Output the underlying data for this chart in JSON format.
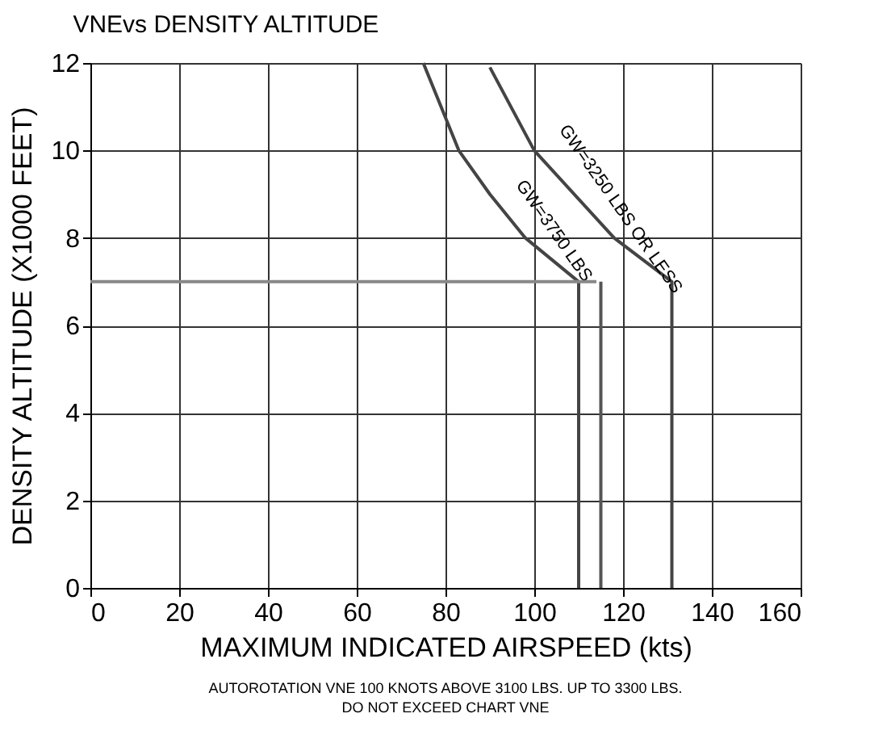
{
  "chart_data": {
    "type": "line",
    "title": "VNEvs DENSITY ALTITUDE",
    "xlabel": "MAXIMUM INDICATED AIRSPEED (kts)",
    "ylabel": "DENSITY ALTITUDE (X1000 FEET)",
    "xlim": [
      0,
      160
    ],
    "xticks": [
      0,
      20,
      40,
      60,
      80,
      100,
      120,
      140,
      160
    ],
    "ylim": [
      0,
      12
    ],
    "yticks": [
      0,
      2,
      4,
      6,
      8,
      10,
      12
    ],
    "grid": true,
    "line_style": "solid",
    "series": [
      {
        "name": "GW=3750 LBS",
        "color": "#444444",
        "x": [
          75,
          83,
          90,
          98,
          110,
          110
        ],
        "values": [
          12,
          10,
          9,
          8,
          7,
          0
        ]
      },
      {
        "name": "GW=3250 LBS OR LESS",
        "color": "#444444",
        "x": [
          90,
          100,
          118,
          131,
          131
        ],
        "values": [
          11.9,
          10,
          8,
          7,
          0
        ]
      },
      {
        "color": "#888888",
        "x": [
          0,
          114
        ],
        "values": [
          7,
          7
        ]
      },
      {
        "color": "#555555",
        "x": [
          115,
          115
        ],
        "values": [
          7,
          0
        ]
      }
    ],
    "annotations": [
      "AUTOROTATION VNE 100 KNOTS  ABOVE 3100 LBS. UP TO 3300 LBS.",
      "DO NOT EXCEED CHART VNE"
    ]
  }
}
